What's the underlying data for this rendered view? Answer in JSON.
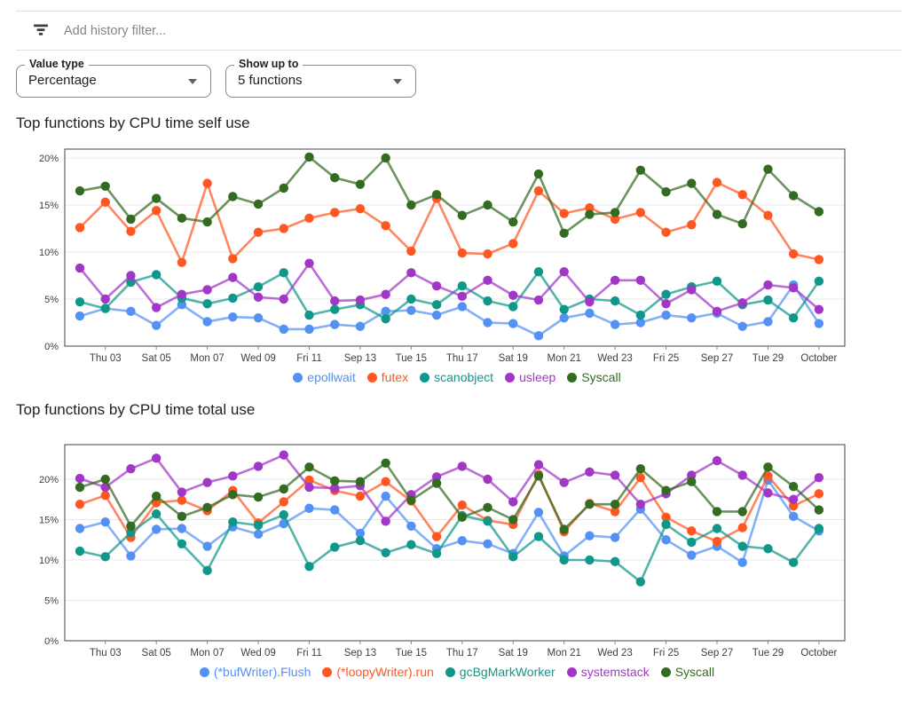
{
  "filter_bar": {
    "icon": "filter-list-icon",
    "placeholder": "Add history filter..."
  },
  "controls": {
    "value_type": {
      "label": "Value type",
      "value": "Percentage",
      "icon": "dropdown-arrow-icon"
    },
    "show_up_to": {
      "label": "Show up to",
      "value": "5 functions",
      "icon": "dropdown-arrow-icon"
    }
  },
  "chart_data": [
    {
      "type": "line",
      "title": "Top functions by CPU time self use",
      "xlabel": "",
      "ylabel": "",
      "unit": "%",
      "ylim": [
        0,
        20.9
      ],
      "yticks": [
        0,
        5,
        10,
        15,
        20
      ],
      "grid": true,
      "legend_position": "bottom",
      "x_labels": [
        "Thu 03",
        "Sat 05",
        "Mon 07",
        "Wed 09",
        "Fri 11",
        "Sep 13",
        "Tue 15",
        "Thu 17",
        "Sat 19",
        "Mon 21",
        "Wed 23",
        "Fri 25",
        "Sep 27",
        "Tue 29",
        "October"
      ],
      "categories": [
        "Sep 02",
        "Sep 03",
        "Sep 04",
        "Sep 05",
        "Sep 06",
        "Sep 07",
        "Sep 08",
        "Sep 09",
        "Sep 10",
        "Sep 11",
        "Sep 12",
        "Sep 13",
        "Sep 14",
        "Sep 15",
        "Sep 16",
        "Sep 17",
        "Sep 18",
        "Sep 19",
        "Sep 20",
        "Sep 21",
        "Sep 22",
        "Sep 23",
        "Sep 24",
        "Sep 25",
        "Sep 26",
        "Sep 27",
        "Sep 28",
        "Sep 29",
        "Sep 30",
        "Oct 01"
      ],
      "series": [
        {
          "name": "epollwait",
          "color": "#5491f5",
          "values": [
            3.2,
            4.0,
            3.7,
            2.2,
            4.4,
            2.6,
            3.1,
            3.0,
            1.8,
            1.8,
            2.3,
            2.1,
            3.7,
            3.8,
            3.3,
            4.2,
            2.5,
            2.4,
            1.1,
            3.0,
            3.5,
            2.3,
            2.5,
            3.3,
            3.0,
            3.5,
            2.1,
            2.6,
            6.5,
            2.4
          ]
        },
        {
          "name": "futex",
          "color": "#ff5722",
          "values": [
            12.6,
            15.3,
            12.2,
            14.4,
            8.9,
            17.3,
            9.3,
            12.1,
            12.5,
            13.6,
            14.2,
            14.6,
            12.8,
            10.1,
            15.7,
            9.9,
            9.8,
            10.9,
            16.5,
            14.1,
            14.7,
            13.5,
            14.2,
            12.1,
            12.9,
            17.4,
            16.1,
            13.9,
            9.8,
            9.2
          ]
        },
        {
          "name": "scanobject",
          "color": "#0f978a",
          "values": [
            4.7,
            4.0,
            6.8,
            7.6,
            5.1,
            4.5,
            5.1,
            6.3,
            7.8,
            3.3,
            3.9,
            4.4,
            2.9,
            5.0,
            4.4,
            6.4,
            4.8,
            4.2,
            7.9,
            3.9,
            5.0,
            4.8,
            3.3,
            5.5,
            6.3,
            6.9,
            4.4,
            4.9,
            3.0,
            6.9
          ]
        },
        {
          "name": "usleep",
          "color": "#a136c7",
          "values": [
            8.3,
            5.0,
            7.5,
            4.1,
            5.5,
            6.0,
            7.3,
            5.2,
            5.0,
            8.8,
            4.8,
            4.9,
            5.5,
            7.8,
            6.4,
            5.3,
            7.0,
            5.4,
            4.9,
            7.9,
            4.7,
            7.0,
            7.0,
            4.5,
            6.0,
            3.7,
            4.6,
            6.5,
            6.2,
            3.9
          ]
        },
        {
          "name": "Syscall",
          "color": "#336b21",
          "values": [
            16.5,
            17.0,
            13.5,
            15.7,
            13.6,
            13.2,
            15.9,
            15.1,
            16.8,
            20.1,
            17.9,
            17.2,
            20.0,
            15.0,
            16.1,
            13.9,
            15.0,
            13.2,
            18.3,
            12.0,
            14.0,
            14.2,
            18.7,
            16.4,
            17.3,
            14.0,
            13.0,
            18.8,
            16.0,
            14.3
          ]
        }
      ]
    },
    {
      "type": "line",
      "title": "Top functions by CPU time total use",
      "xlabel": "",
      "ylabel": "",
      "unit": "%",
      "ylim": [
        0,
        24.3
      ],
      "yticks": [
        0,
        5,
        10,
        15,
        20
      ],
      "grid": true,
      "legend_position": "bottom",
      "x_labels": [
        "Thu 03",
        "Sat 05",
        "Mon 07",
        "Wed 09",
        "Fri 11",
        "Sep 13",
        "Tue 15",
        "Thu 17",
        "Sat 19",
        "Mon 21",
        "Wed 23",
        "Fri 25",
        "Sep 27",
        "Tue 29",
        "October"
      ],
      "categories": [
        "Sep 02",
        "Sep 03",
        "Sep 04",
        "Sep 05",
        "Sep 06",
        "Sep 07",
        "Sep 08",
        "Sep 09",
        "Sep 10",
        "Sep 11",
        "Sep 12",
        "Sep 13",
        "Sep 14",
        "Sep 15",
        "Sep 16",
        "Sep 17",
        "Sep 18",
        "Sep 19",
        "Sep 20",
        "Sep 21",
        "Sep 22",
        "Sep 23",
        "Sep 24",
        "Sep 25",
        "Sep 26",
        "Sep 27",
        "Sep 28",
        "Sep 29",
        "Sep 30",
        "Oct 01"
      ],
      "series": [
        {
          "name": "(*bufWriter).Flush",
          "color": "#5491f5",
          "values": [
            13.9,
            14.7,
            10.5,
            13.8,
            13.9,
            11.7,
            14.1,
            13.2,
            14.5,
            16.4,
            16.2,
            13.3,
            17.9,
            14.2,
            11.4,
            12.4,
            12.0,
            10.8,
            15.9,
            10.5,
            13.0,
            12.8,
            16.3,
            12.5,
            10.6,
            11.7,
            9.7,
            19.9,
            15.4,
            13.6
          ]
        },
        {
          "name": "(*loopyWriter).run",
          "color": "#ff5722",
          "values": [
            16.9,
            18.0,
            12.8,
            17.1,
            17.4,
            16.1,
            18.6,
            14.6,
            17.2,
            19.9,
            18.6,
            17.9,
            19.7,
            17.3,
            12.9,
            16.8,
            14.9,
            14.4,
            20.6,
            13.5,
            17.0,
            16.0,
            20.2,
            15.3,
            13.6,
            12.3,
            14.0,
            20.4,
            16.7,
            18.2
          ]
        },
        {
          "name": "gcBgMarkWorker",
          "color": "#0f978a",
          "values": [
            11.1,
            10.4,
            13.4,
            15.7,
            12.0,
            8.7,
            14.7,
            14.3,
            15.6,
            9.2,
            11.6,
            12.4,
            10.9,
            11.9,
            10.8,
            15.5,
            14.8,
            10.4,
            12.9,
            10.0,
            10.0,
            9.8,
            7.3,
            14.4,
            12.2,
            13.9,
            11.7,
            11.4,
            9.7,
            13.9
          ]
        },
        {
          "name": "systemstack",
          "color": "#a136c7",
          "values": [
            20.1,
            19.0,
            21.3,
            22.6,
            18.4,
            19.6,
            20.4,
            21.6,
            23.0,
            19.0,
            18.9,
            19.2,
            14.8,
            18.1,
            20.3,
            21.6,
            20.0,
            17.2,
            21.8,
            19.6,
            20.9,
            20.5,
            16.9,
            18.2,
            20.5,
            22.3,
            20.5,
            18.3,
            17.5,
            20.2
          ]
        },
        {
          "name": "Syscall",
          "color": "#336b21",
          "values": [
            19.0,
            20.0,
            14.2,
            17.9,
            15.4,
            16.5,
            18.1,
            17.8,
            18.8,
            21.5,
            19.8,
            19.7,
            22.0,
            17.4,
            19.5,
            15.3,
            16.5,
            15.0,
            20.4,
            13.8,
            16.9,
            16.9,
            21.3,
            18.6,
            19.7,
            16.0,
            16.0,
            21.5,
            19.1,
            16.2
          ]
        }
      ]
    }
  ]
}
